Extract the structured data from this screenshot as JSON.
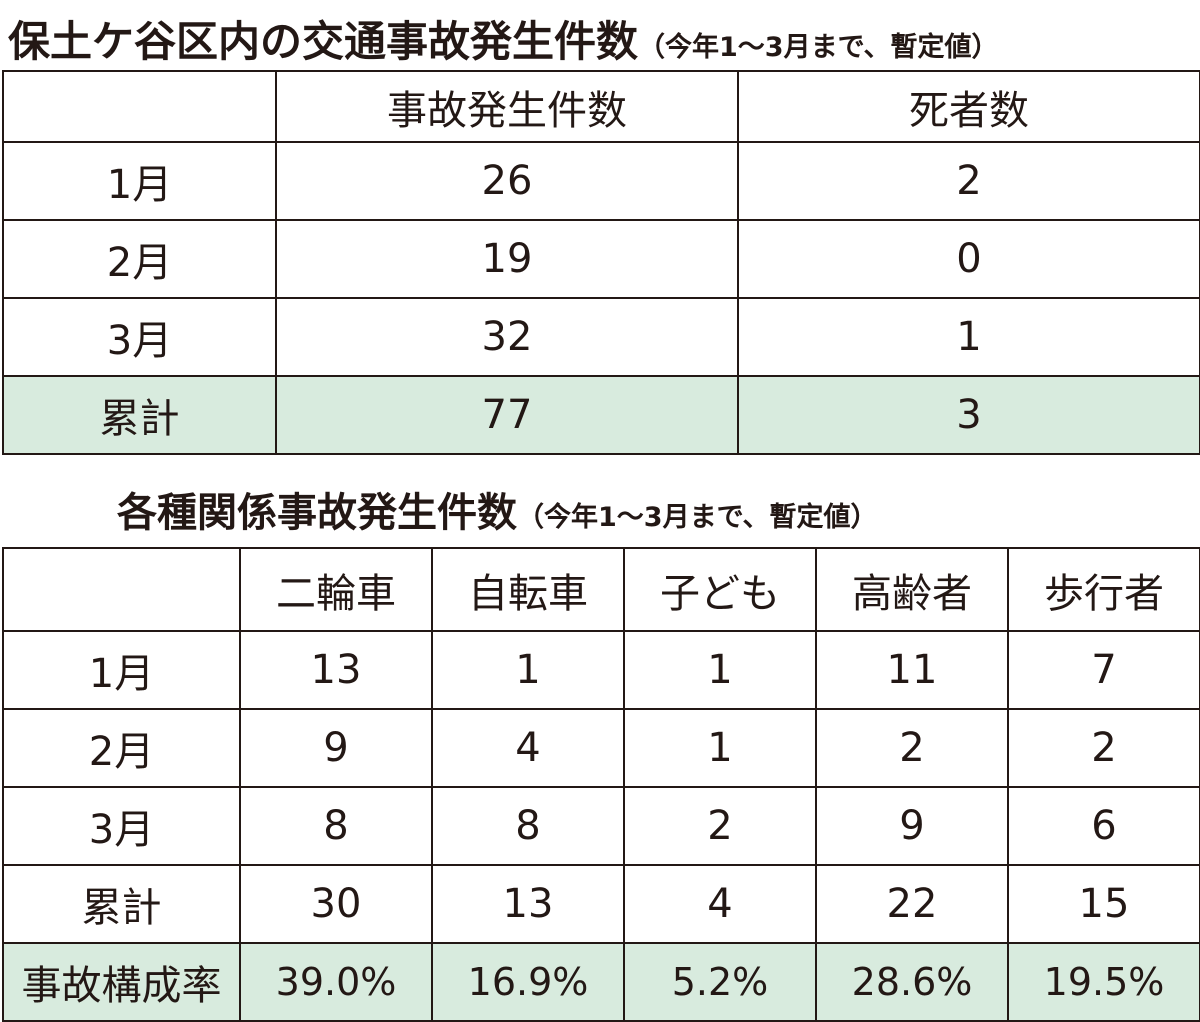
{
  "table1": {
    "title": "保土ケ谷区内の交通事故発生件数",
    "subtitle": "（今年1～3月まで、暫定値）",
    "headers": [
      "",
      "事故発生件数",
      "死者数"
    ],
    "rows": [
      {
        "label": "1月",
        "values": [
          "26",
          "2"
        ]
      },
      {
        "label": "2月",
        "values": [
          "19",
          "0"
        ]
      },
      {
        "label": "3月",
        "values": [
          "32",
          "1"
        ]
      },
      {
        "label": "累計",
        "values": [
          "77",
          "3"
        ]
      }
    ]
  },
  "table2": {
    "title": "各種関係事故発生件数",
    "subtitle": "（今年1～3月まで、暫定値）",
    "headers": [
      "",
      "二輪車",
      "自転車",
      "子ども",
      "高齢者",
      "歩行者"
    ],
    "rows": [
      {
        "label": "1月",
        "values": [
          "13",
          "1",
          "1",
          "11",
          "7"
        ]
      },
      {
        "label": "2月",
        "values": [
          "9",
          "4",
          "1",
          "2",
          "2"
        ]
      },
      {
        "label": "3月",
        "values": [
          "8",
          "8",
          "2",
          "9",
          "6"
        ]
      },
      {
        "label": "累計",
        "values": [
          "30",
          "13",
          "4",
          "22",
          "15"
        ]
      },
      {
        "label": "事故構成率",
        "values": [
          "39.0%",
          "16.9%",
          "5.2%",
          "28.6%",
          "19.5%"
        ]
      }
    ]
  },
  "colors": {
    "highlight_row": "#d8ebde",
    "text": "#231815",
    "border": "#231815"
  },
  "chart_data": [
    {
      "type": "table",
      "title": "保土ケ谷区内の交通事故発生件数",
      "columns": [
        "事故発生件数",
        "死者数"
      ],
      "categories": [
        "1月",
        "2月",
        "3月",
        "累計"
      ],
      "series": [
        {
          "name": "事故発生件数",
          "values": [
            26,
            19,
            32,
            77
          ]
        },
        {
          "name": "死者数",
          "values": [
            2,
            0,
            1,
            3
          ]
        }
      ]
    },
    {
      "type": "table",
      "title": "各種関係事故発生件数",
      "columns": [
        "二輪車",
        "自転車",
        "子ども",
        "高齢者",
        "歩行者"
      ],
      "categories": [
        "1月",
        "2月",
        "3月",
        "累計",
        "事故構成率"
      ],
      "series": [
        {
          "name": "二輪車",
          "values": [
            13,
            9,
            8,
            30,
            39.0
          ]
        },
        {
          "name": "自転車",
          "values": [
            1,
            4,
            8,
            13,
            16.9
          ]
        },
        {
          "name": "子ども",
          "values": [
            1,
            1,
            2,
            4,
            5.2
          ]
        },
        {
          "name": "高齢者",
          "values": [
            11,
            2,
            9,
            22,
            28.6
          ]
        },
        {
          "name": "歩行者",
          "values": [
            7,
            2,
            6,
            15,
            19.5
          ]
        }
      ]
    }
  ]
}
